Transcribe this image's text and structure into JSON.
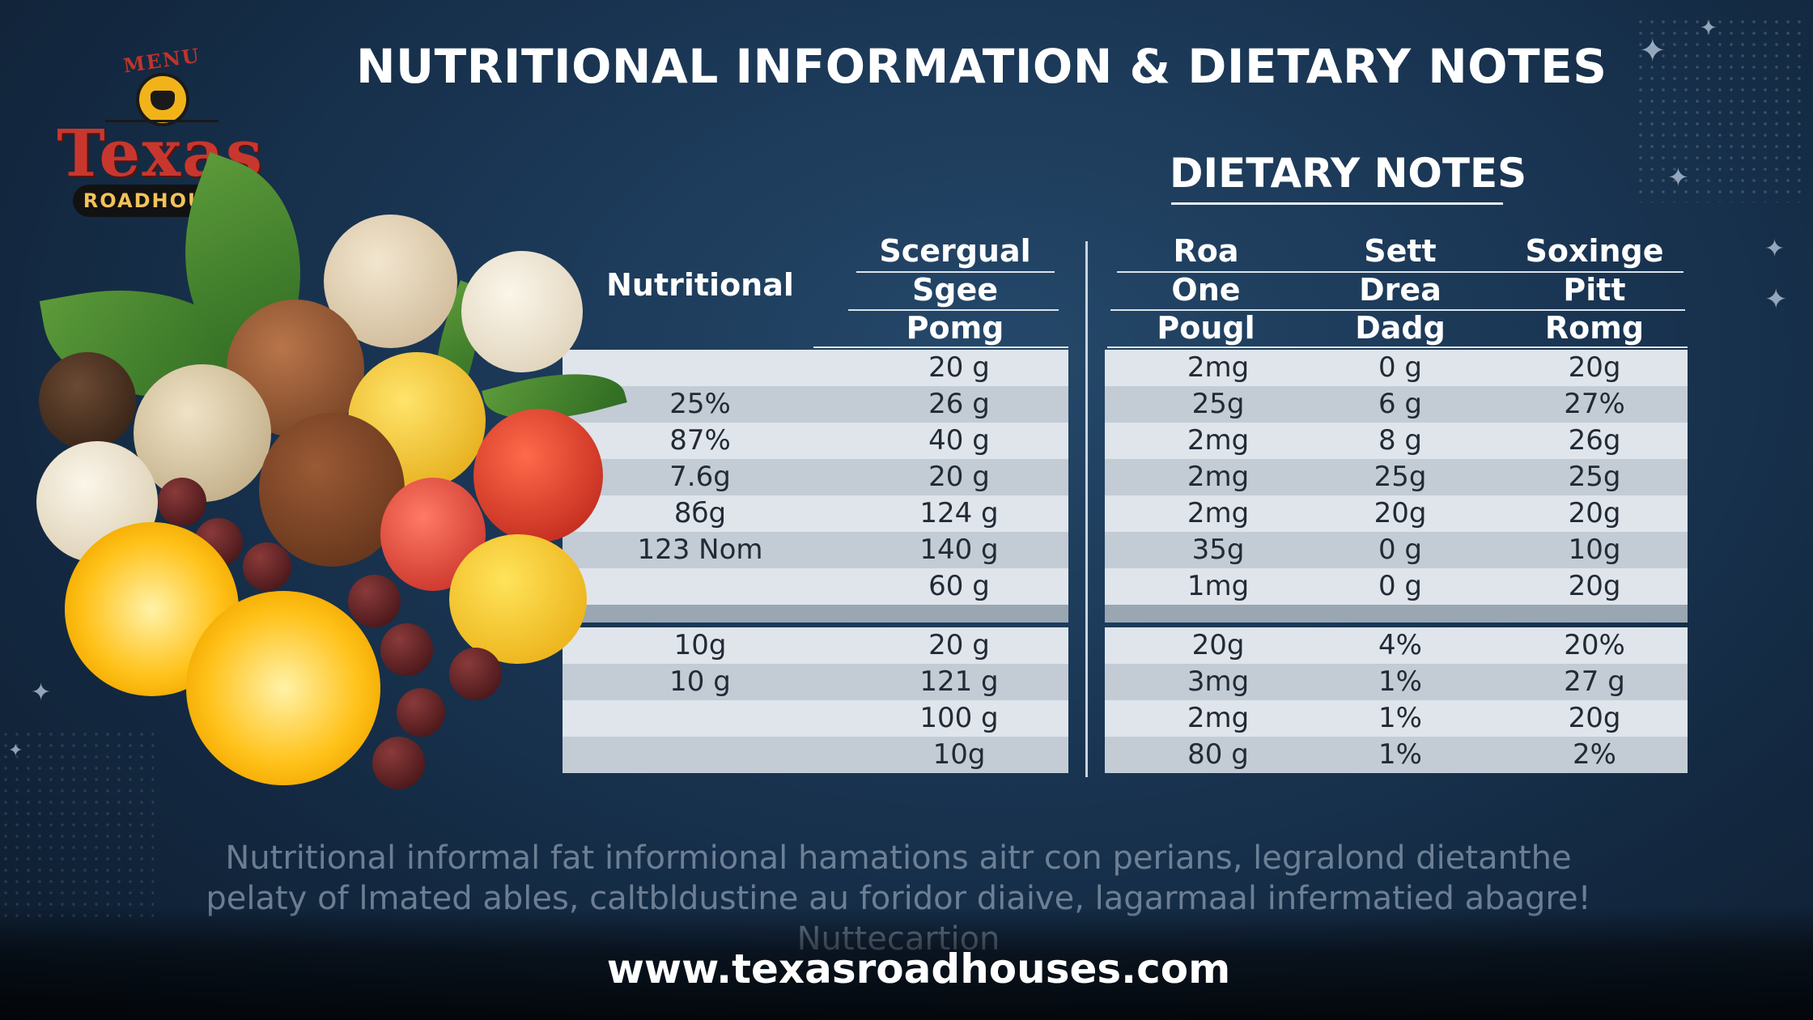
{
  "title": "NUTRITIONAL INFORMATION & DIETARY NOTES",
  "dietary_notes_title": "DIETARY NOTES",
  "logo": {
    "menu": "MENU",
    "texas": "Texas",
    "roadhouse": "ROADHOUSE"
  },
  "table": {
    "nutritional_header": "Nutritional",
    "columns": [
      {
        "lines": [
          "Scergual",
          "Sgee",
          "Pomg"
        ]
      },
      {
        "lines": [
          "Roa",
          "One",
          "Pougl"
        ]
      },
      {
        "lines": [
          "Sett",
          "Drea",
          "Dadg"
        ]
      },
      {
        "lines": [
          "Soxinge",
          "Pitt",
          "Romg"
        ]
      }
    ],
    "rows": [
      {
        "nutr": "",
        "c1": "20 g",
        "c2": "2mg",
        "c3": "0 g",
        "c4": "20g"
      },
      {
        "nutr": "25%",
        "c1": "26 g",
        "c2": "25g",
        "c3": "6 g",
        "c4": "27%"
      },
      {
        "nutr": "87%",
        "c1": "40 g",
        "c2": "2mg",
        "c3": "8 g",
        "c4": "26g"
      },
      {
        "nutr": "7.6g",
        "c1": "20 g",
        "c2": "2mg",
        "c3": "25g",
        "c4": "25g"
      },
      {
        "nutr": "8бg",
        "c1": "124 g",
        "c2": "2mg",
        "c3": "20g",
        "c4": "20g"
      },
      {
        "nutr": "123 Nom",
        "c1": "140 g",
        "c2": "35g",
        "c3": "0 g",
        "c4": "10g"
      },
      {
        "nutr": "",
        "c1": "60 g",
        "c2": "1mg",
        "c3": "0 g",
        "c4": "20g"
      },
      {
        "nutr": "10g",
        "c1": "20 g",
        "c2": "20g",
        "c3": "4%",
        "c4": "20%"
      },
      {
        "nutr": "10 g",
        "c1": "121 g",
        "c2": "3mg",
        "c3": "1%",
        "c4": "27 g"
      },
      {
        "nutr": "",
        "c1": "100 g",
        "c2": "2mg",
        "c3": "1%",
        "c4": "20g"
      },
      {
        "nutr": "",
        "c1": "10g",
        "c2": "80 g",
        "c3": "1%",
        "c4": "2%"
      }
    ]
  },
  "blurb": "Nutritional informal fat informional hamations aitr con perians, legralond dietanthe pelaty of lmated ables, caltbldustine au foridor diaive, lagarmaal infermatied abagre! Nuttecartion",
  "url": "www.texasroadhouses.com"
}
